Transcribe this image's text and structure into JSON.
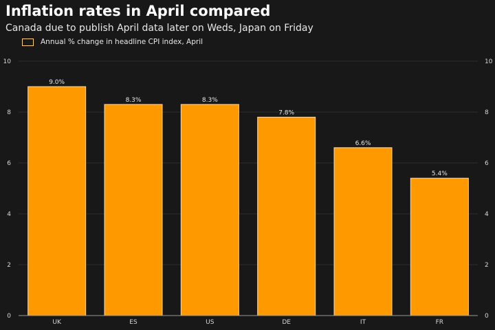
{
  "chart_data": {
    "type": "bar",
    "title": "Inflation rates in April compared",
    "subtitle": "Canada due to publish April data later on Weds, Japan on Friday",
    "legend": "Annual % change in headline CPI index, April",
    "categories": [
      "UK",
      "ES",
      "US",
      "DE",
      "IT",
      "FR"
    ],
    "values": [
      9.0,
      8.3,
      8.3,
      7.8,
      6.6,
      5.4
    ],
    "data_labels": [
      "9.0%",
      "8.3%",
      "8.3%",
      "7.8%",
      "6.6%",
      "5.4%"
    ],
    "ylim": [
      0,
      10
    ],
    "yticks": [
      0,
      2,
      4,
      6,
      8,
      10
    ],
    "grid": true,
    "legend_position": "top-left",
    "y_axis_sides": "both",
    "colors": {
      "bar": "#ff9900",
      "bar_outline": "#ffd9a0",
      "background": "#181818",
      "grid": "#2e2e2e"
    }
  }
}
